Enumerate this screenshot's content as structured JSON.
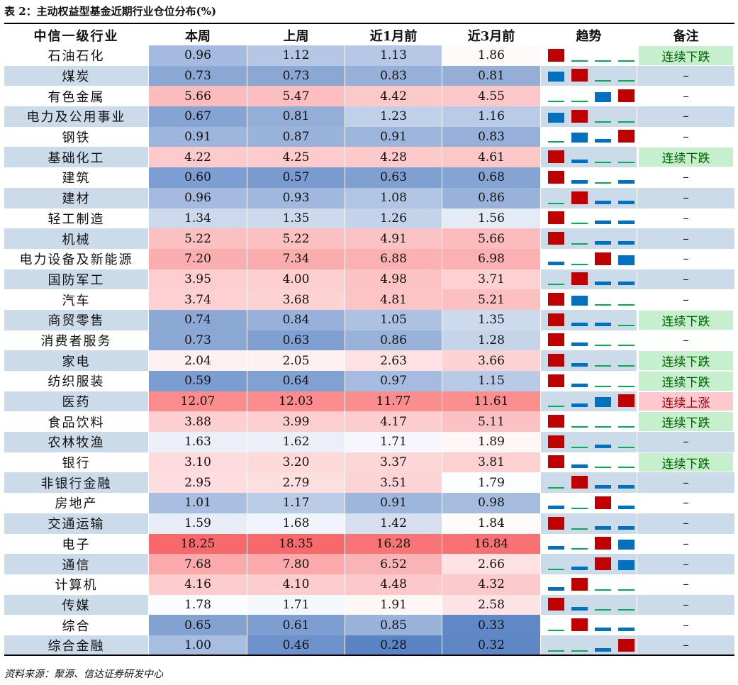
{
  "caption": "表 2：主动权益型基金近期行业仓位分布(%)",
  "headers": [
    "中信一级行业",
    "本周",
    "上周",
    "近1月前",
    "近3月前",
    "趋势",
    "备注"
  ],
  "rows": [
    {
      "name": "石油石化",
      "v": [
        "0.96",
        "1.12",
        "1.13",
        "1.86"
      ],
      "trend": [
        "up",
        "flat",
        "flat",
        "flat"
      ],
      "note": "连续下跌"
    },
    {
      "name": "煤炭",
      "v": [
        "0.73",
        "0.73",
        "0.83",
        "0.81"
      ],
      "trend": [
        "mid",
        "up",
        "flat",
        "flat"
      ],
      "note": "–"
    },
    {
      "name": "有色金属",
      "v": [
        "5.66",
        "5.47",
        "4.42",
        "4.55"
      ],
      "trend": [
        "flat",
        "flat",
        "mid",
        "up"
      ],
      "note": "–"
    },
    {
      "name": "电力及公用事业",
      "v": [
        "0.67",
        "0.81",
        "1.23",
        "1.16"
      ],
      "trend": [
        "mid",
        "up",
        "flat",
        "flat"
      ],
      "note": "–"
    },
    {
      "name": "钢铁",
      "v": [
        "0.91",
        "0.87",
        "0.91",
        "0.83"
      ],
      "trend": [
        "flat",
        "mid",
        "low",
        "up"
      ],
      "note": "–"
    },
    {
      "name": "基础化工",
      "v": [
        "4.22",
        "4.25",
        "4.28",
        "4.61"
      ],
      "trend": [
        "up",
        "low",
        "flat",
        "flat"
      ],
      "note": "连续下跌"
    },
    {
      "name": "建筑",
      "v": [
        "0.60",
        "0.57",
        "0.63",
        "0.68"
      ],
      "trend": [
        "up",
        "low",
        "flat",
        "low"
      ],
      "note": "–"
    },
    {
      "name": "建材",
      "v": [
        "0.96",
        "0.93",
        "1.08",
        "0.86"
      ],
      "trend": [
        "flat",
        "up",
        "low",
        "low"
      ],
      "note": "–"
    },
    {
      "name": "轻工制造",
      "v": [
        "1.34",
        "1.35",
        "1.26",
        "1.56"
      ],
      "trend": [
        "up",
        "flat",
        "low",
        "low"
      ],
      "note": "–"
    },
    {
      "name": "机械",
      "v": [
        "5.22",
        "5.22",
        "4.91",
        "5.66"
      ],
      "trend": [
        "up",
        "flat",
        "low",
        "low"
      ],
      "note": "–"
    },
    {
      "name": "电力设备及新能源",
      "v": [
        "7.20",
        "7.34",
        "6.88",
        "6.98"
      ],
      "trend": [
        "low",
        "flat",
        "up",
        "mid"
      ],
      "note": "–"
    },
    {
      "name": "国防军工",
      "v": [
        "3.95",
        "4.00",
        "4.98",
        "3.71"
      ],
      "trend": [
        "flat",
        "up",
        "low",
        "low"
      ],
      "note": "–"
    },
    {
      "name": "汽车",
      "v": [
        "3.74",
        "3.68",
        "4.81",
        "5.21"
      ],
      "trend": [
        "up",
        "mid",
        "flat",
        "flat"
      ],
      "note": "–"
    },
    {
      "name": "商贸零售",
      "v": [
        "0.74",
        "0.84",
        "1.05",
        "1.35"
      ],
      "trend": [
        "up",
        "low",
        "low",
        "flat"
      ],
      "note": "连续下跌"
    },
    {
      "name": "消费者服务",
      "v": [
        "0.73",
        "0.63",
        "0.86",
        "1.28"
      ],
      "trend": [
        "up",
        "low",
        "flat",
        "flat"
      ],
      "note": "–"
    },
    {
      "name": "家电",
      "v": [
        "2.04",
        "2.05",
        "2.63",
        "3.66"
      ],
      "trend": [
        "up",
        "low",
        "flat",
        "flat"
      ],
      "note": "连续下跌"
    },
    {
      "name": "纺织服装",
      "v": [
        "0.59",
        "0.64",
        "0.97",
        "1.15"
      ],
      "trend": [
        "up",
        "low",
        "flat",
        "flat"
      ],
      "note": "连续下跌"
    },
    {
      "name": "医药",
      "v": [
        "12.07",
        "12.03",
        "11.77",
        "11.61"
      ],
      "trend": [
        "flat",
        "low",
        "mid",
        "up"
      ],
      "note": "连续上涨"
    },
    {
      "name": "食品饮料",
      "v": [
        "3.88",
        "3.99",
        "4.17",
        "5.11"
      ],
      "trend": [
        "up",
        "flat",
        "flat",
        "flat"
      ],
      "note": "连续下跌"
    },
    {
      "name": "农林牧渔",
      "v": [
        "1.63",
        "1.62",
        "1.71",
        "1.89"
      ],
      "trend": [
        "up",
        "flat",
        "low",
        "flat"
      ],
      "note": "–"
    },
    {
      "name": "银行",
      "v": [
        "3.10",
        "3.20",
        "3.37",
        "3.81"
      ],
      "trend": [
        "up",
        "low",
        "flat",
        "flat"
      ],
      "note": "连续下跌"
    },
    {
      "name": "非银行金融",
      "v": [
        "2.95",
        "2.79",
        "3.51",
        "1.79"
      ],
      "trend": [
        "flat",
        "up",
        "low",
        "low"
      ],
      "note": "–"
    },
    {
      "name": "房地产",
      "v": [
        "1.01",
        "1.17",
        "0.91",
        "0.98"
      ],
      "trend": [
        "low",
        "flat",
        "up",
        "low"
      ],
      "note": "–"
    },
    {
      "name": "交通运输",
      "v": [
        "1.59",
        "1.68",
        "1.42",
        "1.84"
      ],
      "trend": [
        "up",
        "flat",
        "low",
        "low"
      ],
      "note": "–"
    },
    {
      "name": "电子",
      "v": [
        "18.25",
        "18.35",
        "16.28",
        "16.84"
      ],
      "trend": [
        "low",
        "flat",
        "up",
        "mid"
      ],
      "note": "–"
    },
    {
      "name": "通信",
      "v": [
        "7.68",
        "7.80",
        "6.52",
        "2.66"
      ],
      "trend": [
        "flat",
        "low",
        "up",
        "mid"
      ],
      "note": "–"
    },
    {
      "name": "计算机",
      "v": [
        "4.16",
        "4.10",
        "4.48",
        "4.32"
      ],
      "trend": [
        "low",
        "up",
        "flat",
        "flat"
      ],
      "note": "–"
    },
    {
      "name": "传媒",
      "v": [
        "1.78",
        "1.71",
        "1.91",
        "2.58"
      ],
      "trend": [
        "up",
        "low",
        "flat",
        "flat"
      ],
      "note": "–"
    },
    {
      "name": "综合",
      "v": [
        "0.65",
        "0.61",
        "0.85",
        "0.33"
      ],
      "trend": [
        "flat",
        "up",
        "low",
        "low"
      ],
      "note": "–"
    },
    {
      "name": "综合金融",
      "v": [
        "1.00",
        "0.46",
        "0.28",
        "0.32"
      ],
      "trend": [
        "flat",
        "flat",
        "low",
        "up"
      ],
      "note": "–"
    }
  ],
  "source": "资料来源：聚源、信达证券研发中心",
  "colors": {
    "low": "#5b84c4",
    "mid": "#ffffff",
    "high": "#f8696b",
    "trend_red": "#c00000",
    "trend_blue": "#0070c0",
    "trend_green": "#00b050",
    "note_down_bg": "#c6efce",
    "note_down_fg": "#006100",
    "note_up_bg": "#ffc7ce",
    "note_up_fg": "#9c0006"
  }
}
